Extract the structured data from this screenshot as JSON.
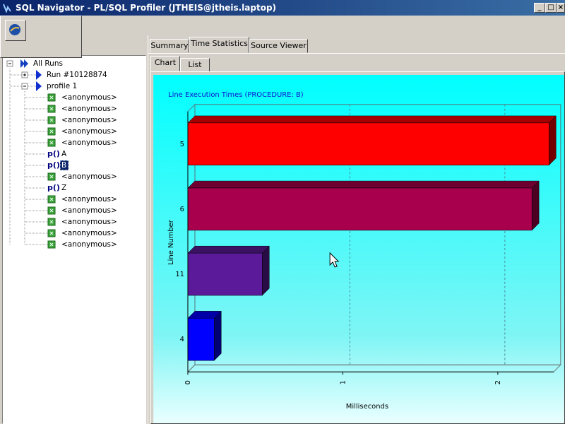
{
  "window": {
    "title": "SQL Navigator - PL/SQL Profiler (JTHEIS@jtheis.laptop)"
  },
  "tabs": [
    "Summary",
    "Time Statistics",
    "Source Viewer"
  ],
  "subtabs": [
    "Chart",
    "List"
  ],
  "tree": {
    "label": "All Runs",
    "expanded": true,
    "children": [
      {
        "label": "Run #10128874",
        "expanded": false
      },
      {
        "label": "profile 1",
        "expanded": true,
        "children": [
          {
            "label": "<anonymous>"
          },
          {
            "label": "<anonymous>"
          },
          {
            "label": "<anonymous>"
          },
          {
            "label": "<anonymous>"
          },
          {
            "label": "<anonymous>"
          },
          {
            "icon": "p()",
            "label": "A"
          },
          {
            "icon": "p()",
            "label": "B",
            "selected": true
          },
          {
            "label": "<anonymous>"
          },
          {
            "icon": "p()",
            "label": "Z"
          },
          {
            "label": "<anonymous>"
          },
          {
            "label": "<anonymous>"
          },
          {
            "label": "<anonymous>"
          },
          {
            "label": "<anonymous>"
          },
          {
            "label": "<anonymous>"
          }
        ]
      }
    ]
  },
  "chart_data": {
    "type": "bar",
    "orientation": "horizontal",
    "title": "Line Execution Times (PROCEDURE: B)",
    "categories": [
      "5",
      "6",
      "11",
      "4"
    ],
    "values": [
      2.33,
      2.22,
      0.48,
      0.17
    ],
    "colors": [
      "#ff0000",
      "#a8004c",
      "#5a1a9a",
      "#0000ff"
    ],
    "xlabel": "Milliseconds",
    "ylabel": "Line Number",
    "xlim": [
      0,
      2.36
    ],
    "xticks": [
      0,
      1,
      2
    ],
    "grid": true
  }
}
